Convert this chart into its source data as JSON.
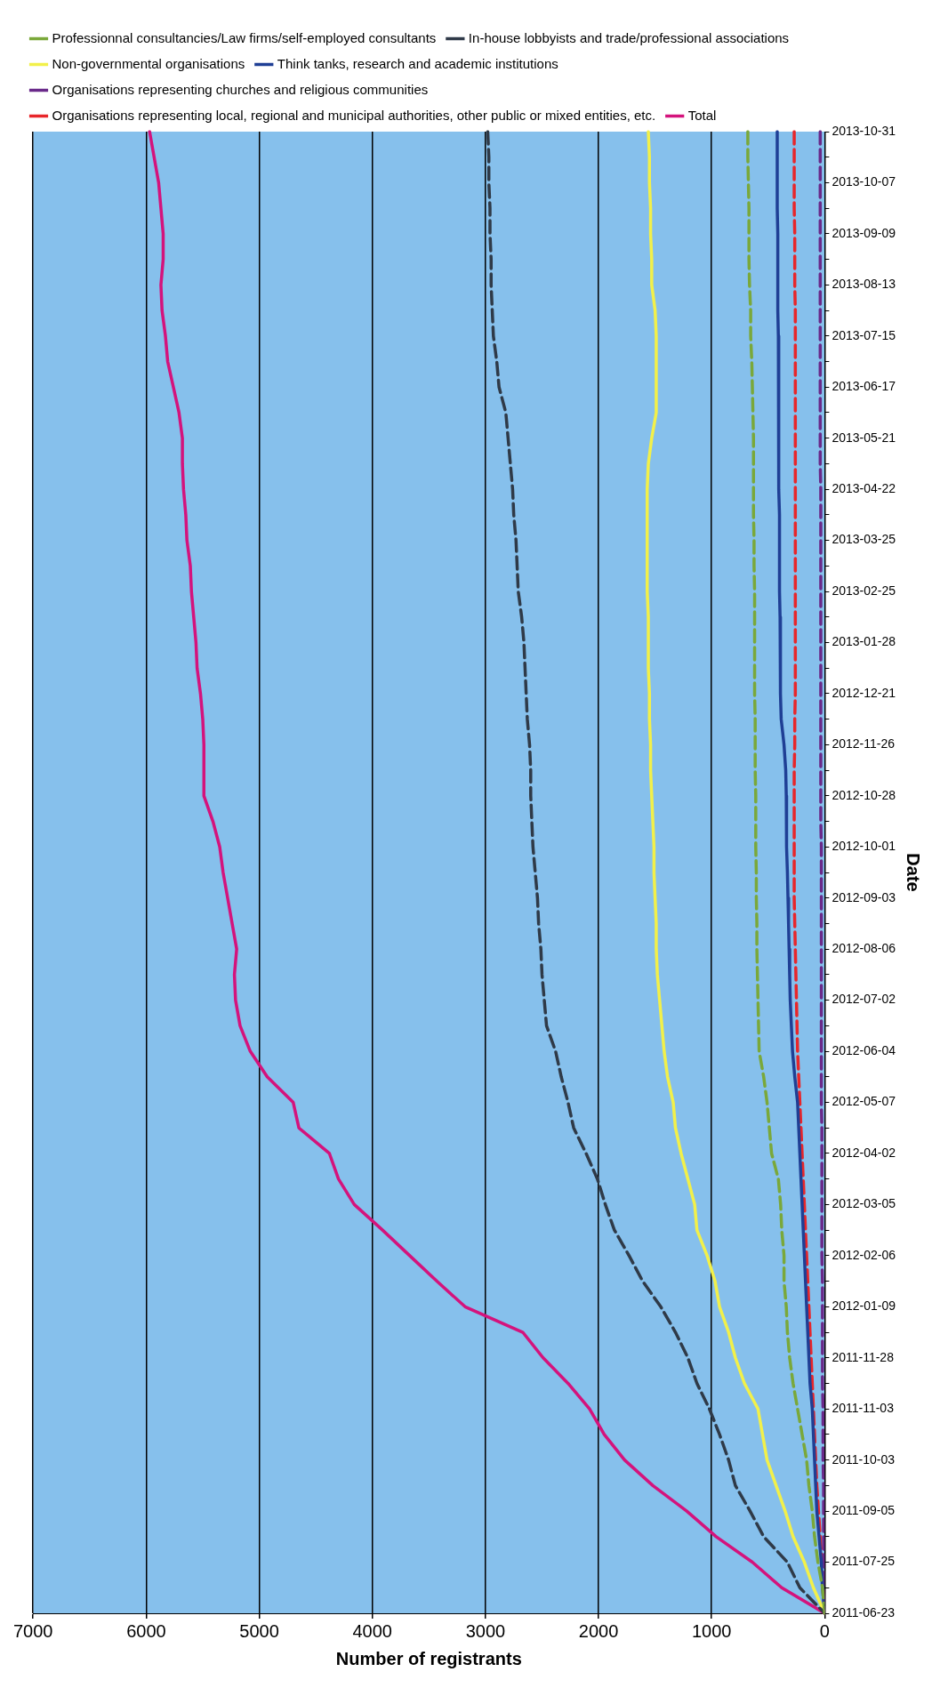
{
  "chart_data": {
    "type": "line",
    "orientation": "horizontal",
    "xlabel": "Number of registrants",
    "ylabel": "Date",
    "categories": [
      "2013-10-31",
      null,
      "2013-10-07",
      null,
      "2013-09-09",
      null,
      "2013-08-13",
      null,
      "2013-07-15",
      null,
      "2013-06-17",
      null,
      "2013-05-21",
      null,
      "2013-04-22",
      null,
      "2013-03-25",
      null,
      "2013-02-25",
      null,
      "2013-01-28",
      null,
      "2012-12-21",
      null,
      "2012-11-26",
      null,
      "2012-10-28",
      null,
      "2012-10-01",
      null,
      "2012-09-03",
      null,
      "2012-08-06",
      null,
      "2012-07-02",
      null,
      "2012-06-04",
      null,
      "2012-05-07",
      null,
      "2012-04-02",
      null,
      "2012-03-05",
      null,
      "2012-02-06",
      null,
      "2012-01-09",
      null,
      "2011-11-28",
      null,
      "2011-11-03",
      null,
      "2011-10-03",
      null,
      "2011-09-05",
      null,
      "2011-07-25",
      null,
      "2011-06-23"
    ],
    "series": [
      {
        "name": "Professionnal consultancies/Law firms/self-employed consultants",
        "color": "#7aa83a",
        "line_style": "dashed",
        "values": [
          680,
          680,
          675,
          670,
          670,
          670,
          665,
          655,
          655,
          645,
          640,
          635,
          630,
          630,
          630,
          630,
          625,
          625,
          620,
          620,
          620,
          620,
          620,
          615,
          615,
          615,
          610,
          610,
          610,
          605,
          605,
          600,
          600,
          595,
          590,
          585,
          580,
          540,
          510,
          490,
          470,
          410,
          390,
          380,
          360,
          360,
          340,
          330,
          310,
          280,
          240,
          200,
          160,
          140,
          110,
          90,
          60,
          20,
          0
        ]
      },
      {
        "name": "In-house lobbyists and trade/professional associations",
        "color": "#2f3a48",
        "line_style": "dashed",
        "values": [
          2980,
          2970,
          2970,
          2960,
          2960,
          2950,
          2950,
          2940,
          2930,
          2900,
          2880,
          2820,
          2800,
          2780,
          2760,
          2750,
          2730,
          2720,
          2710,
          2680,
          2660,
          2650,
          2640,
          2630,
          2610,
          2600,
          2600,
          2590,
          2580,
          2560,
          2540,
          2530,
          2510,
          2500,
          2480,
          2460,
          2380,
          2330,
          2270,
          2220,
          2110,
          2010,
          1940,
          1860,
          1730,
          1610,
          1450,
          1320,
          1210,
          1130,
          1020,
          930,
          850,
          790,
          660,
          540,
          330,
          220,
          0
        ]
      },
      {
        "name": "Non-governmental organisations",
        "color": "#f2f04a",
        "line_style": "solid",
        "values": [
          1560,
          1550,
          1550,
          1540,
          1540,
          1530,
          1530,
          1500,
          1490,
          1490,
          1490,
          1490,
          1530,
          1560,
          1570,
          1570,
          1570,
          1570,
          1570,
          1560,
          1560,
          1560,
          1550,
          1550,
          1540,
          1540,
          1530,
          1520,
          1510,
          1510,
          1500,
          1490,
          1490,
          1480,
          1460,
          1440,
          1420,
          1390,
          1340,
          1320,
          1270,
          1210,
          1150,
          1130,
          1040,
          970,
          930,
          850,
          790,
          710,
          590,
          550,
          510,
          430,
          350,
          280,
          180,
          100,
          0
        ]
      },
      {
        "name": "Think tanks, research and academic institutions",
        "color": "#1f3f95",
        "line_style": "solid",
        "values": [
          420,
          420,
          420,
          420,
          415,
          415,
          415,
          415,
          410,
          410,
          410,
          405,
          405,
          405,
          405,
          400,
          400,
          400,
          400,
          395,
          395,
          390,
          390,
          385,
          360,
          345,
          340,
          340,
          335,
          330,
          325,
          320,
          315,
          310,
          305,
          295,
          285,
          265,
          240,
          230,
          220,
          210,
          200,
          190,
          180,
          170,
          160,
          150,
          140,
          130,
          110,
          100,
          90,
          80,
          70,
          50,
          30,
          20,
          0
        ]
      },
      {
        "name": "Organisations representing churches and religious communities",
        "color": "#6a2a8a",
        "line_style": "dashed",
        "values": [
          40,
          40,
          40,
          40,
          40,
          40,
          40,
          40,
          40,
          40,
          40,
          40,
          40,
          40,
          35,
          35,
          35,
          35,
          35,
          35,
          35,
          35,
          35,
          35,
          35,
          35,
          35,
          35,
          30,
          30,
          30,
          30,
          30,
          30,
          30,
          30,
          30,
          30,
          30,
          25,
          25,
          25,
          25,
          25,
          25,
          20,
          20,
          20,
          20,
          20,
          15,
          15,
          15,
          10,
          10,
          10,
          5,
          5,
          0
        ]
      },
      {
        "name": "Organisations representing local, regional and municipal authorities, other public or mixed entities, etc.",
        "color": "#e8262a",
        "line_style": "dashed",
        "values": [
          270,
          270,
          270,
          270,
          265,
          265,
          265,
          260,
          260,
          260,
          260,
          260,
          260,
          260,
          260,
          260,
          260,
          260,
          260,
          260,
          260,
          260,
          260,
          265,
          265,
          270,
          270,
          270,
          270,
          270,
          270,
          265,
          260,
          255,
          250,
          245,
          240,
          230,
          220,
          210,
          200,
          190,
          180,
          170,
          160,
          150,
          140,
          130,
          120,
          110,
          100,
          90,
          80,
          70,
          55,
          40,
          25,
          15,
          0
        ]
      },
      {
        "name": "Total",
        "color": "#d4137c",
        "line_style": "solid",
        "values": [
          5970,
          5930,
          5890,
          5870,
          5850,
          5850,
          5870,
          5860,
          5830,
          5810,
          5760,
          5710,
          5680,
          5680,
          5670,
          5650,
          5640,
          5610,
          5600,
          5580,
          5560,
          5550,
          5520,
          5500,
          5490,
          5490,
          5490,
          5410,
          5350,
          5320,
          5280,
          5240,
          5200,
          5220,
          5210,
          5170,
          5080,
          4930,
          4700,
          4650,
          4380,
          4300,
          4160,
          3910,
          3670,
          3430,
          3180,
          2670,
          2490,
          2270,
          2080,
          1950,
          1770,
          1520,
          1220,
          960,
          640,
          380,
          0
        ]
      }
    ],
    "xlim": [
      7000,
      0
    ],
    "xticks": [
      7000,
      6000,
      5000,
      4000,
      3000,
      2000,
      1000,
      0
    ],
    "grid": "x",
    "legend": "top",
    "marker": "none"
  }
}
